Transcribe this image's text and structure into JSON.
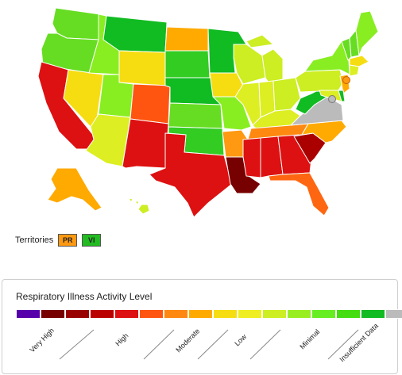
{
  "states": [
    {
      "name": "WA",
      "color": "#66dd22"
    },
    {
      "name": "OR",
      "color": "#66dd22"
    },
    {
      "name": "CA",
      "color": "#dd1111"
    },
    {
      "name": "NV",
      "color": "#f5dd11"
    },
    {
      "name": "ID",
      "color": "#88ee22"
    },
    {
      "name": "MT",
      "color": "#11bb22"
    },
    {
      "name": "WY",
      "color": "#f5dd11"
    },
    {
      "name": "UT",
      "color": "#88ee22"
    },
    {
      "name": "AZ",
      "color": "#ddee22"
    },
    {
      "name": "CO",
      "color": "#ff5511"
    },
    {
      "name": "NM",
      "color": "#dd1111"
    },
    {
      "name": "ND",
      "color": "#ffaa00"
    },
    {
      "name": "SD",
      "color": "#33cc22"
    },
    {
      "name": "NE",
      "color": "#11bb22"
    },
    {
      "name": "KS",
      "color": "#66dd22"
    },
    {
      "name": "OK",
      "color": "#33cc22"
    },
    {
      "name": "TX",
      "color": "#dd1111"
    },
    {
      "name": "MN",
      "color": "#11bb22"
    },
    {
      "name": "IA",
      "color": "#f5dd11"
    },
    {
      "name": "MO",
      "color": "#88ee22"
    },
    {
      "name": "AR",
      "color": "#ff9911"
    },
    {
      "name": "LA",
      "color": "#770000"
    },
    {
      "name": "WI",
      "color": "#ccee22"
    },
    {
      "name": "IL",
      "color": "#ddee22"
    },
    {
      "name": "MI",
      "color": "#ccee22"
    },
    {
      "name": "IN",
      "color": "#ddee22"
    },
    {
      "name": "OH",
      "color": "#ccee22"
    },
    {
      "name": "KY",
      "color": "#ddee22"
    },
    {
      "name": "TN",
      "color": "#ff8811"
    },
    {
      "name": "MS",
      "color": "#dd1111"
    },
    {
      "name": "AL",
      "color": "#dd1111"
    },
    {
      "name": "GA",
      "color": "#dd1111"
    },
    {
      "name": "FL",
      "color": "#ff6611"
    },
    {
      "name": "SC",
      "color": "#aa0000"
    },
    {
      "name": "NC",
      "color": "#ffaa00"
    },
    {
      "name": "VA",
      "color": "#bbbbbb"
    },
    {
      "name": "WV",
      "color": "#11bb22"
    },
    {
      "name": "PA",
      "color": "#ccee22"
    },
    {
      "name": "NY",
      "color": "#88ee22"
    },
    {
      "name": "VT",
      "color": "#66dd22"
    },
    {
      "name": "NH",
      "color": "#66dd22"
    },
    {
      "name": "ME",
      "color": "#88ee22"
    },
    {
      "name": "MA",
      "color": "#f5dd11"
    },
    {
      "name": "CT",
      "color": "#ddee22"
    },
    {
      "name": "NJ",
      "color": "#ffaa00"
    },
    {
      "name": "MD",
      "color": "#ddee22"
    },
    {
      "name": "DE",
      "color": "#11bb22"
    },
    {
      "name": "DC",
      "color": "#bbbbbb"
    },
    {
      "name": "AK",
      "color": "#ffaa00"
    },
    {
      "name": "HI",
      "color": "#ccee22"
    }
  ],
  "territories": {
    "label": "Territories",
    "items": [
      {
        "name": "PR",
        "color": "#ff9911"
      },
      {
        "name": "VI",
        "color": "#22bb22"
      }
    ]
  },
  "legend": {
    "title": "Respiratory Illness Activity Level",
    "colors": [
      "#5500aa",
      "#770000",
      "#990000",
      "#bb0000",
      "#dd1111",
      "#ff5511",
      "#ff8811",
      "#ffaa00",
      "#f5dd11",
      "#eeee22",
      "#ccee22",
      "#99ee22",
      "#66ee22",
      "#44dd11",
      "#11bb22",
      "#bbbbbb"
    ],
    "labels": [
      "Very High",
      "High",
      "Moderate",
      "Low",
      "Minimal",
      "Insufficient Data"
    ]
  }
}
